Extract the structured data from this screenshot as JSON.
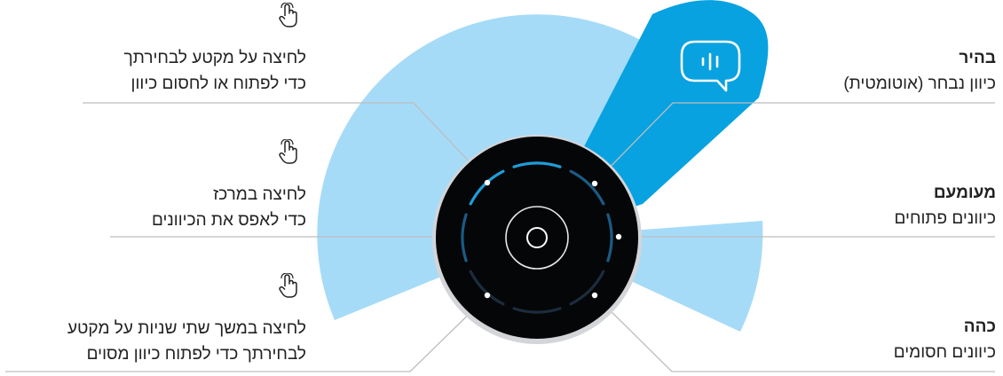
{
  "colors": {
    "light_sector": "#a6dbf8",
    "bright_sector": "#08a2e0",
    "device_body": "#050608",
    "device_rim": "#d3d5d8",
    "segment_bright": "#1e9ed9",
    "segment_dim": "#1b5b85",
    "segment_dark": "#1c2c3d",
    "leader_line": "#bdbdbd",
    "text": "#222222"
  },
  "icons": {
    "gesture": "hand-pointer-icon",
    "speech": "speech-bubble-waveform-icon"
  },
  "left_labels": {
    "segment": {
      "line1": "לחיצה על מקטע לבחירתך",
      "line2": "כדי לפתוח או לחסום כיוון"
    },
    "center": {
      "line1": "לחיצה במרכז",
      "line2": "כדי לאפס את הכיוונים"
    },
    "long_press": {
      "line1": "לחיצה במשך שתי שניות על מקטע",
      "line2": "לבחירתך כדי לפתוח כיוון מסוים"
    }
  },
  "right_labels": {
    "bright": {
      "title": "בהיר",
      "desc": "כיוון נבחר (אוטומטית)"
    },
    "dim": {
      "title": "מעומעם",
      "desc": "כיוונים פתוחים"
    },
    "dark": {
      "title": "כהה",
      "desc": "כיוונים חסומים"
    }
  }
}
